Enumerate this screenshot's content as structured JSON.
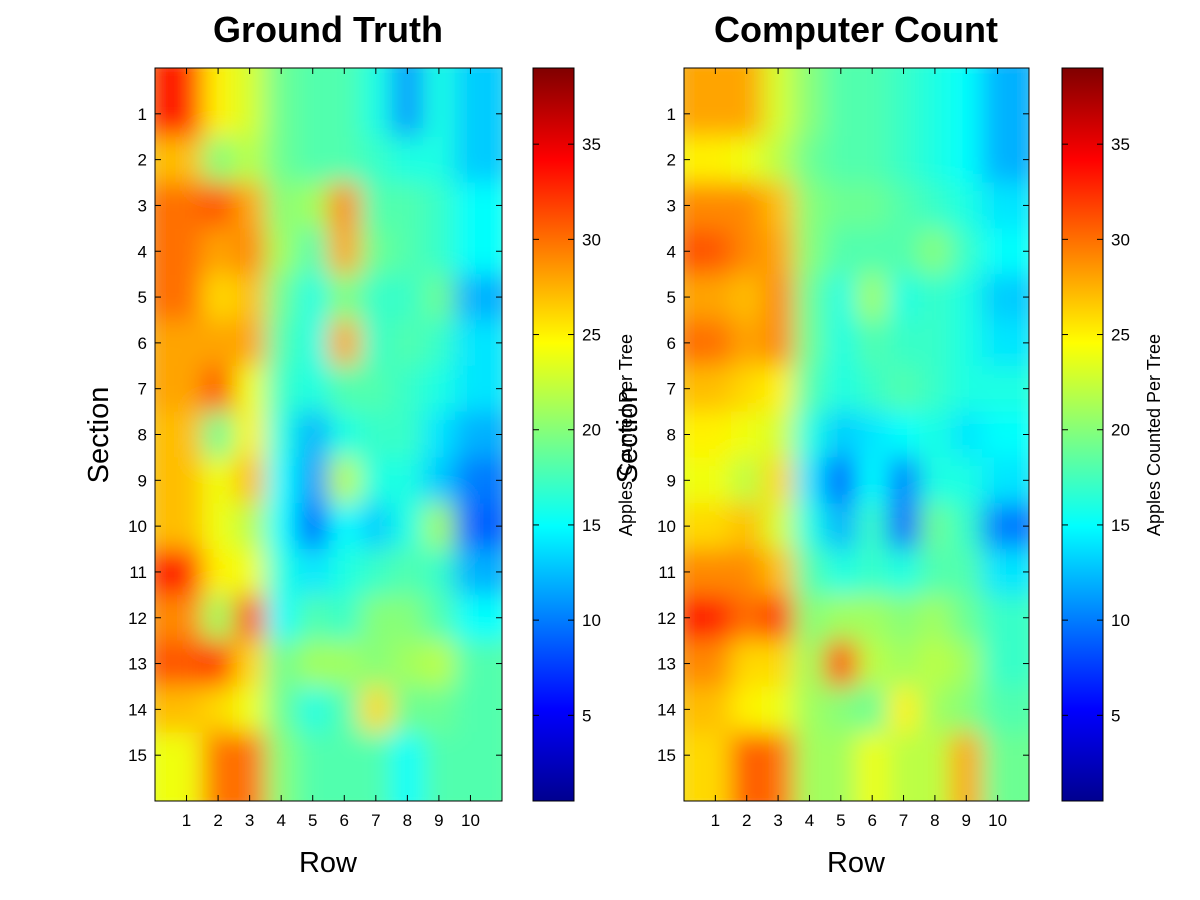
{
  "colormap": "jet",
  "colorbar": {
    "label": "Apples Counted Per Tree",
    "range": [
      0.5,
      39
    ],
    "ticks": [
      5,
      10,
      15,
      20,
      25,
      30,
      35
    ]
  },
  "chart_data": [
    {
      "type": "heatmap",
      "title": "Ground Truth",
      "xlabel": "Row",
      "ylabel": "Section",
      "x_categories": [
        "1",
        "2",
        "3",
        "4",
        "5",
        "6",
        "7",
        "8",
        "9",
        "10"
      ],
      "y_categories": [
        "1",
        "2",
        "3",
        "4",
        "5",
        "6",
        "7",
        "8",
        "9",
        "10",
        "11",
        "12",
        "13",
        "14",
        "15"
      ],
      "zlabel": "Apples Counted Per Tree",
      "zlim": [
        0.5,
        39
      ],
      "values": [
        [
          33,
          25,
          23,
          19,
          18,
          18,
          16,
          11,
          16,
          13
        ],
        [
          27,
          20,
          22,
          19,
          18,
          18,
          17,
          16,
          16,
          13
        ],
        [
          30,
          31,
          28,
          20,
          21,
          29,
          18,
          18,
          17,
          15
        ],
        [
          30,
          28,
          29,
          21,
          18,
          28,
          19,
          18,
          17,
          15
        ],
        [
          30,
          26,
          27,
          19,
          16,
          20,
          17,
          17,
          19,
          12
        ],
        [
          28,
          28,
          28,
          18,
          16,
          28,
          17,
          18,
          17,
          14
        ],
        [
          28,
          31,
          24,
          17,
          16,
          18,
          18,
          17,
          16,
          14
        ],
        [
          27,
          19,
          25,
          16,
          12,
          16,
          17,
          17,
          14,
          12
        ],
        [
          27,
          24,
          27,
          15,
          11,
          22,
          16,
          16,
          13,
          10
        ],
        [
          27,
          24,
          22,
          15,
          9,
          15,
          13,
          16,
          21,
          9
        ],
        [
          33,
          25,
          24,
          16,
          14,
          16,
          17,
          18,
          17,
          12
        ],
        [
          29,
          21,
          31,
          15,
          18,
          17,
          20,
          20,
          18,
          15
        ],
        [
          31,
          32,
          26,
          19,
          21,
          21,
          20,
          21,
          22,
          18
        ],
        [
          27,
          26,
          24,
          19,
          16,
          18,
          26,
          19,
          19,
          18
        ],
        [
          24,
          30,
          30,
          20,
          18,
          18,
          18,
          15,
          18,
          18
        ]
      ]
    },
    {
      "type": "heatmap",
      "title": "Computer Count",
      "xlabel": "Row",
      "ylabel": "Section",
      "x_categories": [
        "1",
        "2",
        "3",
        "4",
        "5",
        "6",
        "7",
        "8",
        "9",
        "10"
      ],
      "y_categories": [
        "1",
        "2",
        "3",
        "4",
        "5",
        "6",
        "7",
        "8",
        "9",
        "10",
        "11",
        "12",
        "13",
        "14",
        "15"
      ],
      "zlabel": "Apples Counted Per Tree",
      "zlim": [
        0.5,
        39
      ],
      "values": [
        [
          28,
          28,
          23,
          20,
          18,
          18,
          17,
          16,
          15,
          12
        ],
        [
          25,
          24,
          22,
          19,
          18,
          18,
          17,
          16,
          15,
          12
        ],
        [
          29,
          29,
          27,
          20,
          19,
          19,
          18,
          17,
          16,
          14
        ],
        [
          31,
          29,
          28,
          20,
          18,
          18,
          18,
          20,
          17,
          15
        ],
        [
          28,
          27,
          29,
          19,
          16,
          21,
          16,
          17,
          16,
          13
        ],
        [
          30,
          28,
          29,
          19,
          16,
          18,
          17,
          17,
          16,
          14
        ],
        [
          27,
          26,
          25,
          18,
          16,
          17,
          18,
          17,
          16,
          16
        ],
        [
          25,
          24,
          23,
          16,
          13,
          14,
          15,
          16,
          14,
          15
        ],
        [
          24,
          22,
          26,
          14,
          9,
          15,
          10,
          16,
          16,
          14
        ],
        [
          26,
          27,
          23,
          16,
          12,
          17,
          9,
          19,
          17,
          10
        ],
        [
          29,
          29,
          27,
          18,
          16,
          17,
          16,
          18,
          18,
          14
        ],
        [
          33,
          30,
          32,
          20,
          21,
          21,
          20,
          21,
          19,
          17
        ],
        [
          29,
          26,
          26,
          21,
          32,
          22,
          21,
          22,
          21,
          17
        ],
        [
          27,
          25,
          24,
          21,
          20,
          19,
          25,
          21,
          20,
          18
        ],
        [
          26,
          31,
          30,
          21,
          21,
          24,
          22,
          22,
          28,
          19
        ]
      ]
    }
  ]
}
